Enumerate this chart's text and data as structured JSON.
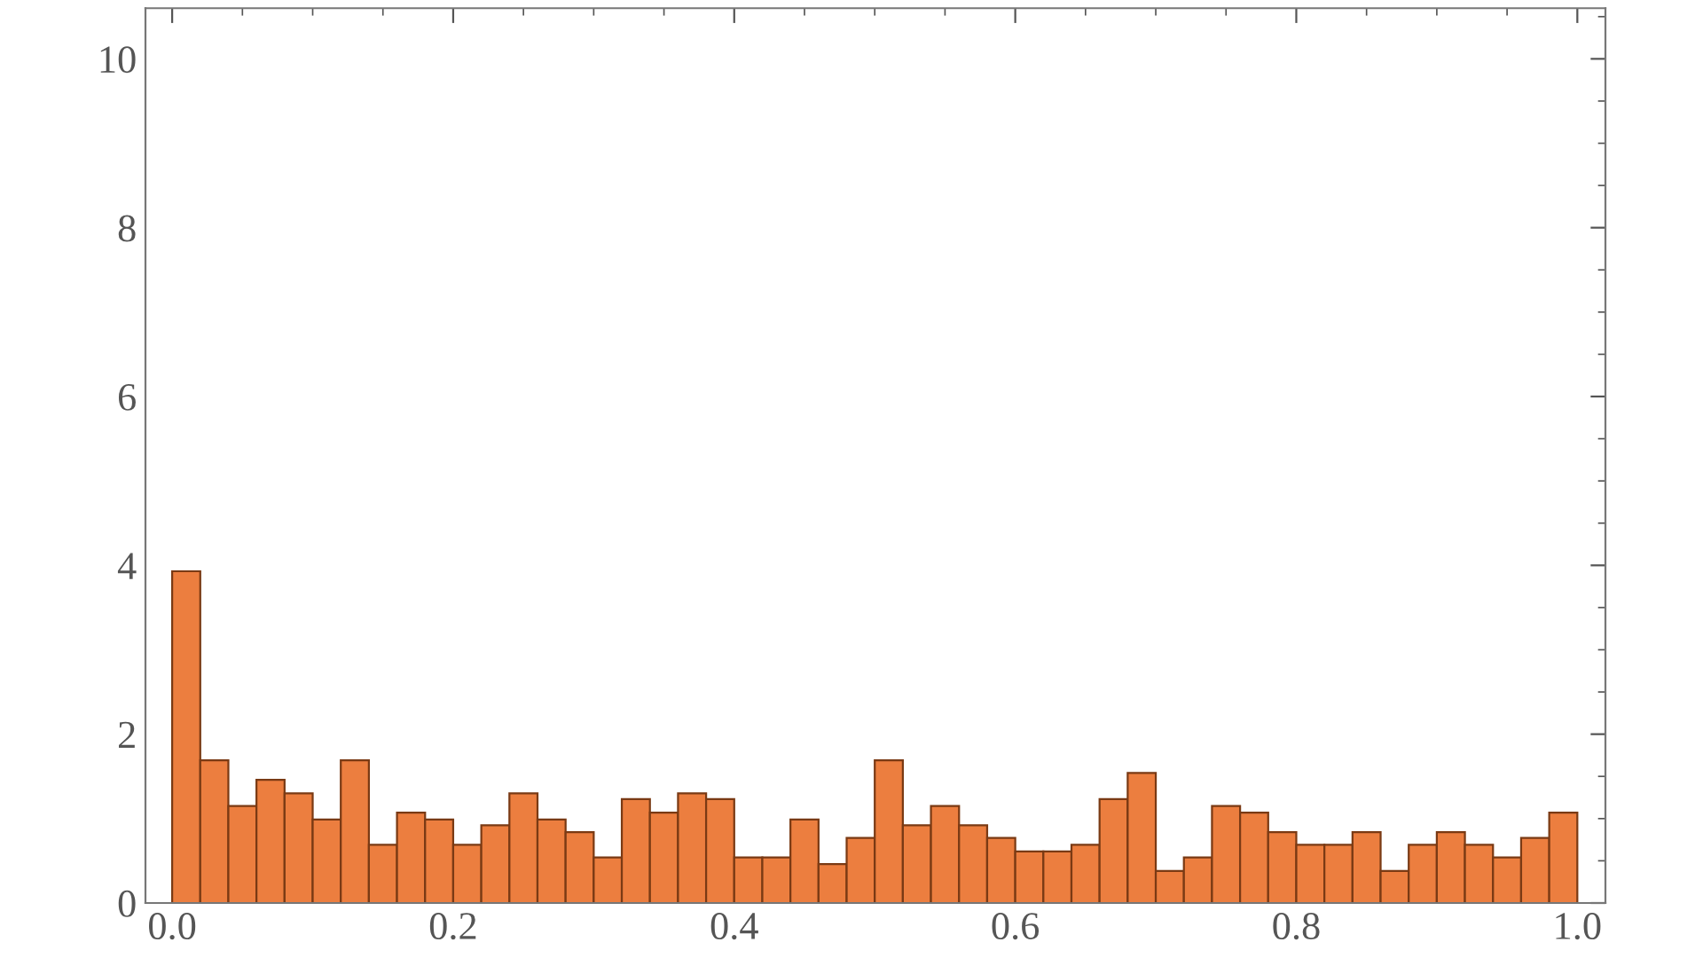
{
  "chart_data": {
    "type": "histogram",
    "bins": [
      0.0,
      0.02,
      0.04,
      0.06,
      0.08,
      0.1,
      0.12,
      0.14,
      0.16,
      0.18,
      0.2,
      0.22,
      0.24,
      0.26,
      0.28,
      0.3,
      0.32,
      0.34,
      0.36,
      0.38,
      0.4,
      0.42,
      0.44,
      0.46,
      0.48,
      0.5,
      0.52,
      0.54,
      0.56,
      0.58,
      0.6,
      0.62,
      0.64,
      0.66,
      0.68,
      0.7,
      0.72,
      0.74,
      0.76,
      0.78,
      0.8,
      0.82,
      0.84,
      0.86,
      0.88,
      0.9,
      0.92,
      0.94,
      0.96,
      0.98,
      1.0
    ],
    "values": [
      3.93,
      1.69,
      1.15,
      1.46,
      1.3,
      0.99,
      1.69,
      0.69,
      1.07,
      0.99,
      0.69,
      0.92,
      1.3,
      0.99,
      0.84,
      0.54,
      1.23,
      1.07,
      1.3,
      1.23,
      0.54,
      0.54,
      0.99,
      0.46,
      0.77,
      1.69,
      0.92,
      1.15,
      0.92,
      0.77,
      0.61,
      0.61,
      0.69,
      1.23,
      1.54,
      0.38,
      0.54,
      1.15,
      1.07,
      0.84,
      0.69,
      0.69,
      0.84,
      0.38,
      0.69,
      0.84,
      0.69,
      0.54,
      0.77,
      1.07
    ],
    "color": "#ec7e3f",
    "xlim": [
      -0.019,
      1.02
    ],
    "ylim": [
      0,
      10.6
    ],
    "xticks": [
      {
        "value": 0.0,
        "label": "0.0"
      },
      0.2,
      0.4,
      0.6,
      0.8,
      {
        "value": 1.0,
        "label": "1.0"
      }
    ],
    "yticks": [
      0,
      2,
      4,
      6,
      8,
      10
    ],
    "grid": false
  }
}
